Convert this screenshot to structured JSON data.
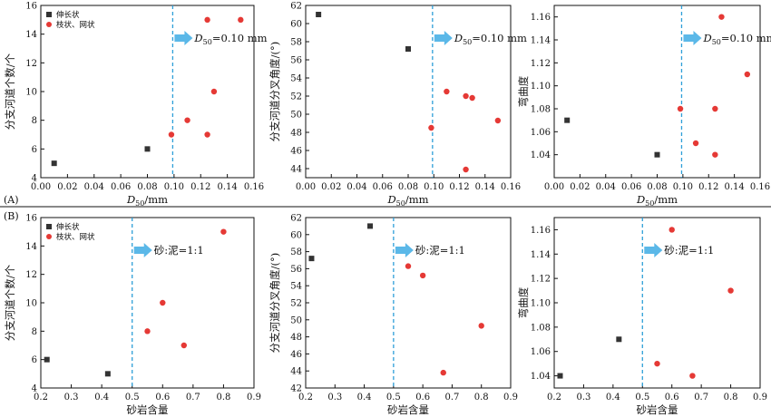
{
  "panel_labels": [
    "(A)",
    "(B)"
  ],
  "legend": [
    {
      "label": "伸长状",
      "color": "#333333",
      "marker": "square"
    },
    {
      "label": "枝状、网状",
      "color": "#e53935",
      "marker": "circle"
    }
  ],
  "colors": {
    "series1": "#333333",
    "series2": "#e53935",
    "ref_line": "#2e9fd8",
    "arrow": "#5bb8e8"
  },
  "chart_data": [
    {
      "id": "A1",
      "type": "scatter",
      "xlabel_main": "D",
      "xlabel_sub": "50",
      "xlabel_unit": "/mm",
      "ylabel": "分支河道个数/个",
      "xlim": [
        0,
        0.16
      ],
      "ylim": [
        4,
        16
      ],
      "xticks": [
        "0.00",
        "0.02",
        "0.04",
        "0.06",
        "0.08",
        "0.10",
        "0.12",
        "0.14",
        "0.16"
      ],
      "yticks": [
        "4",
        "6",
        "8",
        "10",
        "12",
        "14",
        "16"
      ],
      "ref_x": 0.099,
      "annotation": {
        "main": "D",
        "sub": "50",
        "rest": "=0.10 mm"
      },
      "series": [
        {
          "name": "伸长状",
          "points": [
            [
              0.01,
              5
            ],
            [
              0.08,
              6
            ]
          ]
        },
        {
          "name": "枝状、网状",
          "points": [
            [
              0.098,
              7
            ],
            [
              0.11,
              8
            ],
            [
              0.13,
              10
            ],
            [
              0.125,
              7
            ],
            [
              0.125,
              15
            ],
            [
              0.15,
              15
            ]
          ]
        }
      ]
    },
    {
      "id": "A2",
      "type": "scatter",
      "xlabel_main": "D",
      "xlabel_sub": "50",
      "xlabel_unit": "/mm",
      "ylabel": "分支河道分叉角度/(°)",
      "xlim": [
        0,
        0.16
      ],
      "ylim": [
        43,
        62
      ],
      "xticks": [
        "0.00",
        "0.02",
        "0.04",
        "0.06",
        "0.08",
        "0.10",
        "0.12",
        "0.14",
        "0.16"
      ],
      "yticks": [
        "44",
        "46",
        "48",
        "50",
        "52",
        "54",
        "56",
        "58",
        "60",
        "62"
      ],
      "ref_x": 0.099,
      "annotation": {
        "main": "D",
        "sub": "50",
        "rest": "=0.10 mm"
      },
      "series": [
        {
          "name": "伸长状",
          "points": [
            [
              0.01,
              61
            ],
            [
              0.08,
              57.2
            ]
          ]
        },
        {
          "name": "枝状、网状",
          "points": [
            [
              0.098,
              48.5
            ],
            [
              0.11,
              52.5
            ],
            [
              0.125,
              52
            ],
            [
              0.13,
              51.8
            ],
            [
              0.15,
              49.3
            ],
            [
              0.125,
              43.9
            ]
          ]
        }
      ]
    },
    {
      "id": "A3",
      "type": "scatter",
      "xlabel_main": "D",
      "xlabel_sub": "50",
      "xlabel_unit": "/mm",
      "ylabel": "弯曲度",
      "xlim": [
        0,
        0.16
      ],
      "ylim": [
        1.02,
        1.17
      ],
      "xticks": [
        "0.00",
        "0.02",
        "0.04",
        "0.06",
        "0.08",
        "0.10",
        "0.12",
        "0.14",
        "0.16"
      ],
      "yticks": [
        "1.04",
        "1.06",
        "1.08",
        "1.10",
        "1.12",
        "1.14",
        "1.16"
      ],
      "ref_x": 0.099,
      "annotation": {
        "main": "D",
        "sub": "50",
        "rest": "=0.10 mm"
      },
      "series": [
        {
          "name": "伸长状",
          "points": [
            [
              0.01,
              1.07
            ],
            [
              0.08,
              1.04
            ]
          ]
        },
        {
          "name": "枝状、网状",
          "points": [
            [
              0.098,
              1.08
            ],
            [
              0.11,
              1.05
            ],
            [
              0.125,
              1.08
            ],
            [
              0.125,
              1.04
            ],
            [
              0.13,
              1.16
            ],
            [
              0.15,
              1.11
            ]
          ]
        }
      ]
    },
    {
      "id": "B1",
      "type": "scatter",
      "xlabel_main": "砂岩含量",
      "xlabel_sub": "",
      "xlabel_unit": "",
      "ylabel": "分支河道个数/个",
      "xlim": [
        0.2,
        0.9
      ],
      "ylim": [
        4,
        16
      ],
      "xticks": [
        "0.2",
        "0.3",
        "0.4",
        "0.5",
        "0.6",
        "0.7",
        "0.8",
        "0.9"
      ],
      "yticks": [
        "4",
        "6",
        "8",
        "10",
        "12",
        "14",
        "16"
      ],
      "ref_x": 0.5,
      "annotation": {
        "main": "砂:泥=1:1",
        "sub": "",
        "rest": ""
      },
      "series": [
        {
          "name": "伸长状",
          "points": [
            [
              0.22,
              6
            ],
            [
              0.42,
              5
            ]
          ]
        },
        {
          "name": "枝状、网状",
          "points": [
            [
              0.55,
              8
            ],
            [
              0.6,
              10
            ],
            [
              0.67,
              7
            ],
            [
              0.8,
              15
            ]
          ]
        }
      ]
    },
    {
      "id": "B2",
      "type": "scatter",
      "xlabel_main": "砂岩含量",
      "xlabel_sub": "",
      "xlabel_unit": "",
      "ylabel": "分支河道分叉角度/(°)",
      "xlim": [
        0.2,
        0.9
      ],
      "ylim": [
        42,
        62
      ],
      "xticks": [
        "0.2",
        "0.3",
        "0.4",
        "0.5",
        "0.6",
        "0.7",
        "0.8",
        "0.9"
      ],
      "yticks": [
        "42",
        "44",
        "46",
        "48",
        "50",
        "52",
        "54",
        "56",
        "58",
        "60",
        "62"
      ],
      "ref_x": 0.5,
      "annotation": {
        "main": "砂:泥=1:1",
        "sub": "",
        "rest": ""
      },
      "series": [
        {
          "name": "伸长状",
          "points": [
            [
              0.22,
              57.2
            ],
            [
              0.42,
              61
            ]
          ]
        },
        {
          "name": "枝状、网状",
          "points": [
            [
              0.55,
              56.3
            ],
            [
              0.6,
              55.2
            ],
            [
              0.67,
              43.8
            ],
            [
              0.8,
              49.3
            ]
          ]
        }
      ]
    },
    {
      "id": "B3",
      "type": "scatter",
      "xlabel_main": "砂岩含量",
      "xlabel_sub": "",
      "xlabel_unit": "",
      "ylabel": "弯曲度",
      "xlim": [
        0.2,
        0.9
      ],
      "ylim": [
        1.03,
        1.17
      ],
      "xticks": [
        "0.2",
        "0.3",
        "0.4",
        "0.5",
        "0.6",
        "0.7",
        "0.8",
        "0.9"
      ],
      "yticks": [
        "1.04",
        "1.06",
        "1.08",
        "1.10",
        "1.12",
        "1.14",
        "1.16"
      ],
      "ref_x": 0.5,
      "annotation": {
        "main": "砂:泥=1:1",
        "sub": "",
        "rest": ""
      },
      "series": [
        {
          "name": "伸长状",
          "points": [
            [
              0.22,
              1.04
            ],
            [
              0.42,
              1.07
            ]
          ]
        },
        {
          "name": "枝状、网状",
          "points": [
            [
              0.55,
              1.05
            ],
            [
              0.6,
              1.16
            ],
            [
              0.67,
              1.04
            ],
            [
              0.8,
              1.11
            ]
          ]
        }
      ]
    }
  ]
}
